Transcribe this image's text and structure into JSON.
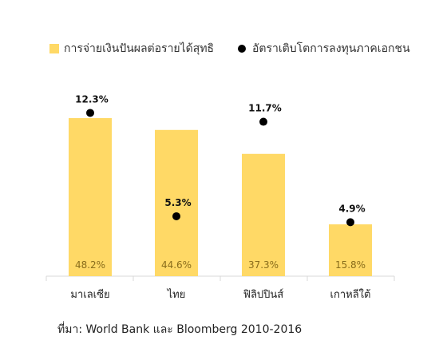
{
  "chart_data": {
    "type": "bar",
    "categories": [
      "มาเลเซีย",
      "ไทย",
      "ฟิลิปปินส์",
      "เกาหลีใต้"
    ],
    "series": [
      {
        "name": "การจ่ายเงินปันผลต่อรายได้สุทธิ",
        "kind": "bar",
        "values": [
          48.2,
          44.6,
          37.3,
          15.8
        ],
        "labels": [
          "48.2%",
          "44.6%",
          "37.3%",
          "15.8%"
        ],
        "color": "#FFD966"
      },
      {
        "name": "อัตราเติบโตการลงทุนภาคเอกชน",
        "kind": "scatter",
        "values": [
          12.3,
          5.3,
          11.7,
          4.9
        ],
        "labels": [
          "12.3%",
          "5.3%",
          "11.7%",
          "4.9%"
        ],
        "color": "#000000"
      }
    ],
    "grid": false,
    "legend_position": "top",
    "source": "ที่มา: World Bank และ Bloomberg 2010-2016"
  },
  "colors": {
    "bar": "#FFD966",
    "bar_label": "#8a6d1c",
    "dot": "#000000",
    "axis": "#d9d9d9"
  }
}
